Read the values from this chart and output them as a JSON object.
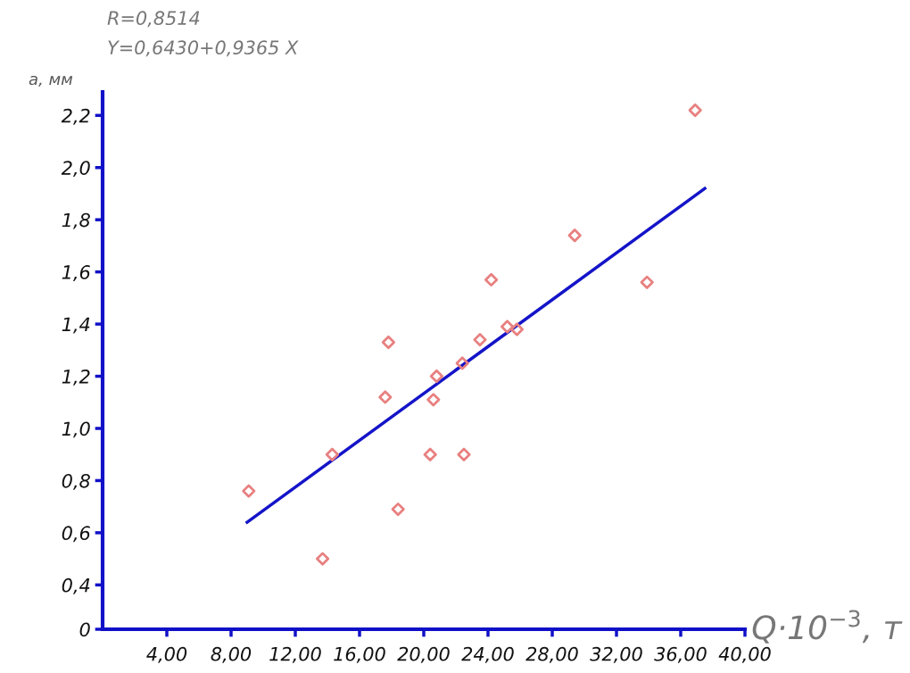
{
  "chart_data": {
    "type": "scatter",
    "xlabel": "Q·10$^{−3}$, т",
    "ylabel": "a, мм",
    "annotations": [
      "R=0,8514",
      "Y=0,6430+0,9365 X"
    ],
    "xlim": [
      0,
      40
    ],
    "xticks": [
      {
        "value": 4,
        "label": "4,00"
      },
      {
        "value": 8,
        "label": "8,00"
      },
      {
        "value": 12,
        "label": "12,00"
      },
      {
        "value": 16,
        "label": "16,00"
      },
      {
        "value": 20,
        "label": "20,00"
      },
      {
        "value": 24,
        "label": "24,00"
      },
      {
        "value": 28,
        "label": "28,00"
      },
      {
        "value": 32,
        "label": "32,00"
      },
      {
        "value": 36,
        "label": "36,00"
      },
      {
        "value": 40,
        "label": "40,00"
      }
    ],
    "ylim": [
      0.23,
      2.29
    ],
    "yticks": [
      {
        "value": 0.23,
        "label": "0"
      },
      {
        "value": 0.4,
        "label": "0,4"
      },
      {
        "value": 0.6,
        "label": "0,6"
      },
      {
        "value": 0.8,
        "label": "0,8"
      },
      {
        "value": 1.0,
        "label": "1,0"
      },
      {
        "value": 1.2,
        "label": "1,2"
      },
      {
        "value": 1.4,
        "label": "1,4"
      },
      {
        "value": 1.6,
        "label": "1,6"
      },
      {
        "value": 1.8,
        "label": "1,8"
      },
      {
        "value": 2.0,
        "label": "2,0"
      },
      {
        "value": 2.2,
        "label": "2,2"
      }
    ],
    "grid": false,
    "legend": false,
    "series": [
      {
        "color": "#e88080",
        "marker": "diamond",
        "x": [
          9.1,
          13.7,
          14.3,
          17.6,
          17.8,
          18.4,
          20.4,
          20.6,
          20.8,
          22.4,
          22.5,
          23.5,
          24.2,
          25.2,
          25.8,
          29.4,
          33.9,
          36.9
        ],
        "values": [
          0.76,
          0.5,
          0.9,
          1.12,
          1.33,
          0.69,
          0.9,
          1.11,
          1.2,
          1.25,
          0.9,
          1.34,
          1.57,
          1.39,
          1.38,
          1.74,
          1.56,
          2.22
        ]
      },
      {
        "type": "line",
        "color": "#1414c8",
        "marker": "none",
        "line_style": "solid",
        "x": [
          9.0,
          37.5
        ],
        "values": [
          0.64,
          1.92
        ]
      }
    ]
  }
}
